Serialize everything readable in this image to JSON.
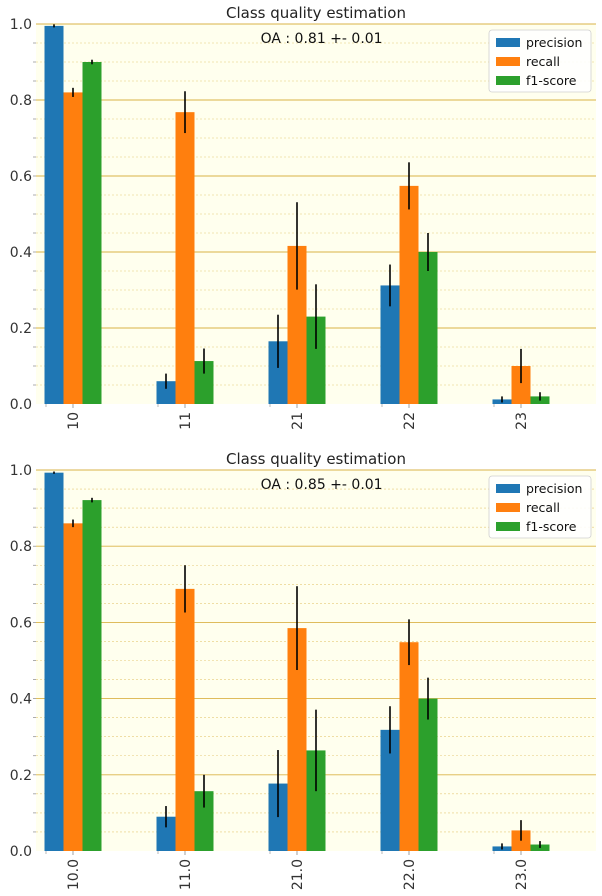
{
  "colors": {
    "plot_background": "#ffffee",
    "grid": "#d4a62a",
    "error_bar": "#000000"
  },
  "chart_data": [
    {
      "type": "bar",
      "title": "Class quality estimation",
      "annotation": "OA : 0.81 +- 0.01",
      "categories": [
        "10",
        "11",
        "21",
        "22",
        "23"
      ],
      "series": [
        {
          "name": "precision",
          "color": "#1f77b4",
          "values": [
            0.995,
            0.06,
            0.165,
            0.312,
            0.012
          ],
          "errors": [
            0.004,
            0.02,
            0.07,
            0.055,
            0.008
          ]
        },
        {
          "name": "recall",
          "color": "#ff7f0e",
          "values": [
            0.82,
            0.768,
            0.416,
            0.574,
            0.1
          ],
          "errors": [
            0.012,
            0.055,
            0.115,
            0.062,
            0.045
          ]
        },
        {
          "name": "f1-score",
          "color": "#2ca02c",
          "values": [
            0.9,
            0.113,
            0.23,
            0.4,
            0.02
          ],
          "errors": [
            0.006,
            0.033,
            0.085,
            0.05,
            0.011
          ]
        }
      ],
      "ylim": [
        0,
        1.0
      ],
      "yticks": [
        "0.0",
        "0.2",
        "0.4",
        "0.6",
        "0.8",
        "1.0"
      ],
      "grid": true,
      "legend_position": "top-right",
      "xlabel": "",
      "ylabel": ""
    },
    {
      "type": "bar",
      "title": "Class quality estimation",
      "annotation": "OA : 0.85 +- 0.01",
      "categories": [
        "10.0",
        "11.0",
        "21.0",
        "22.0",
        "23.0"
      ],
      "series": [
        {
          "name": "precision",
          "color": "#1f77b4",
          "values": [
            0.993,
            0.09,
            0.177,
            0.318,
            0.012
          ],
          "errors": [
            0.003,
            0.028,
            0.088,
            0.062,
            0.008
          ]
        },
        {
          "name": "recall",
          "color": "#ff7f0e",
          "values": [
            0.86,
            0.688,
            0.585,
            0.548,
            0.054
          ],
          "errors": [
            0.01,
            0.062,
            0.11,
            0.06,
            0.027
          ]
        },
        {
          "name": "f1-score",
          "color": "#2ca02c",
          "values": [
            0.921,
            0.157,
            0.264,
            0.4,
            0.017
          ],
          "errors": [
            0.006,
            0.043,
            0.107,
            0.055,
            0.009
          ]
        }
      ],
      "ylim": [
        0,
        1.0
      ],
      "yticks": [
        "0.0",
        "0.2",
        "0.4",
        "0.6",
        "0.8",
        "1.0"
      ],
      "grid": true,
      "legend_position": "top-right",
      "xlabel": "",
      "ylabel": ""
    }
  ]
}
